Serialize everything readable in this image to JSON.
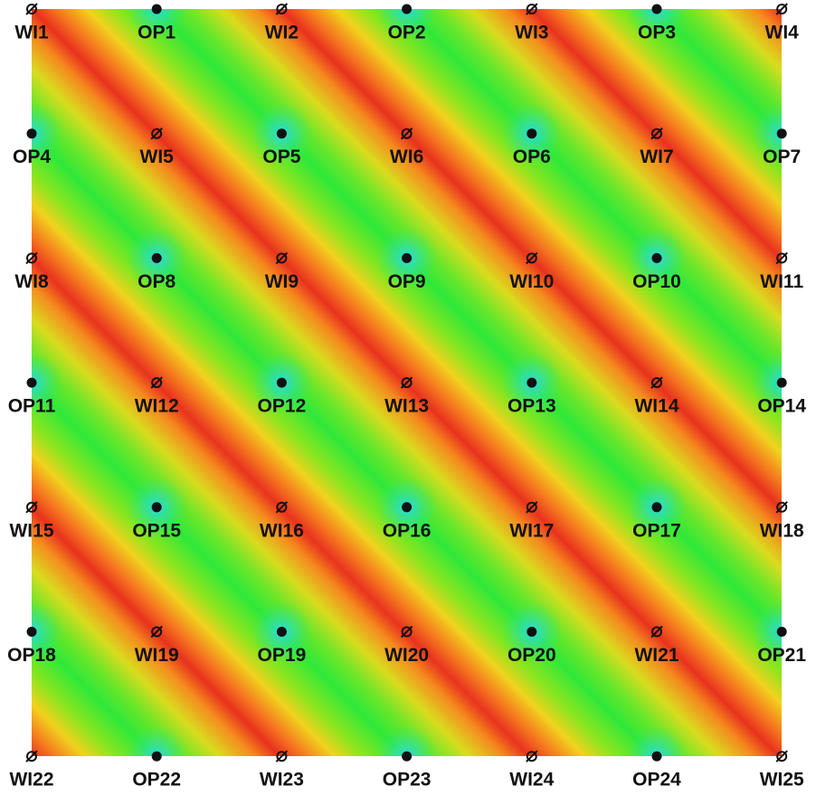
{
  "rows": [
    [
      "WI1",
      "OP1",
      "WI2",
      "OP2",
      "WI3",
      "OP3",
      "WI4"
    ],
    [
      "OP4",
      "WI5",
      "OP5",
      "WI6",
      "OP6",
      "WI7",
      "OP7"
    ],
    [
      "WI8",
      "OP8",
      "WI9",
      "OP9",
      "WI10",
      "OP10",
      "WI11"
    ],
    [
      "OP11",
      "WI12",
      "OP12",
      "WI13",
      "OP13",
      "WI14",
      "OP14"
    ],
    [
      "WI15",
      "OP15",
      "WI16",
      "OP16",
      "WI17",
      "OP17",
      "WI18"
    ],
    [
      "OP18",
      "WI19",
      "OP19",
      "WI20",
      "OP20",
      "WI21",
      "OP21"
    ],
    [
      "WI22",
      "OP22",
      "WI23",
      "OP23",
      "WI24",
      "OP24",
      "WI25"
    ]
  ]
}
